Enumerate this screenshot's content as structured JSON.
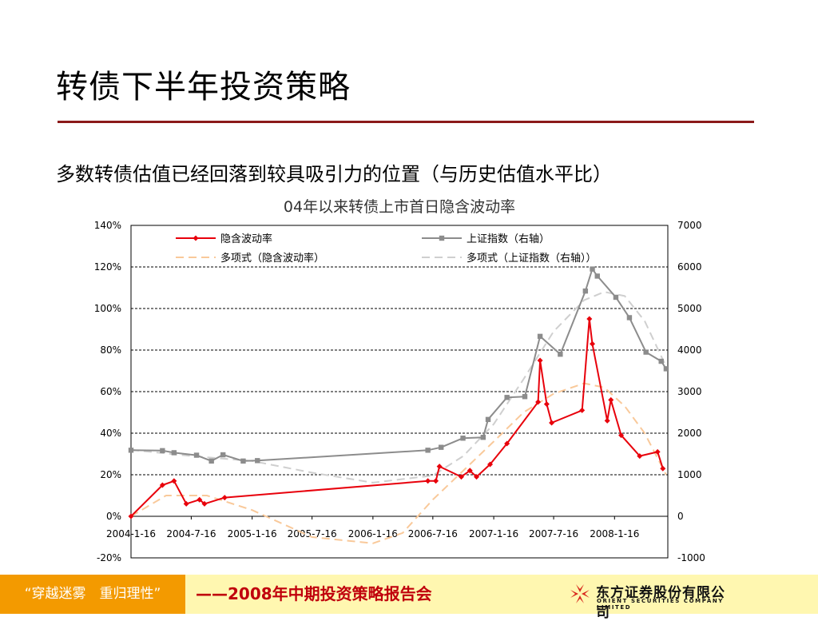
{
  "slide": {
    "title": "转债下半年投资策略",
    "subtitle": "多数转债估值已经回落到较具吸引力的位置（与历史估值水平比）"
  },
  "footer": {
    "left_text": "“穿越迷雾　重归理性”",
    "center_text": "——2008年中期投资策略报告会",
    "logo_cn": "东方证券股份有限公司",
    "logo_en": "ORIENT SECURITIES COMPANY LIMITED",
    "logo_color": "#d8261c"
  },
  "chart_data": {
    "type": "line",
    "title": "04年以来转债上市首日隐含波动率",
    "x_ticks": [
      "2004-1-16",
      "2004-7-16",
      "2005-1-16",
      "2005-7-16",
      "2006-1-16",
      "2006-7-16",
      "2007-1-16",
      "2007-7-16",
      "2008-1-16"
    ],
    "x_range": [
      "2004-01-16",
      "2008-06-25"
    ],
    "y_left": {
      "range": [
        -20,
        140
      ],
      "ticks": [
        "-20%",
        "0%",
        "20%",
        "40%",
        "60%",
        "80%",
        "100%",
        "120%",
        "140%"
      ]
    },
    "y_right": {
      "range": [
        -1000,
        7000
      ],
      "ticks": [
        "-1000",
        "0",
        "1000",
        "2000",
        "3000",
        "4000",
        "5000",
        "6000",
        "7000"
      ]
    },
    "grid": true,
    "legend_position": "top",
    "series": [
      {
        "name": "隐含波动率",
        "axis": "left",
        "color": "#e8000b",
        "style": "solid-marker-diamond",
        "points": [
          [
            "2004-01-16",
            0
          ],
          [
            "2004-04-20",
            15
          ],
          [
            "2004-05-25",
            17
          ],
          [
            "2004-07-01",
            6
          ],
          [
            "2004-08-10",
            8
          ],
          [
            "2004-08-25",
            6
          ],
          [
            "2004-10-25",
            9
          ],
          [
            "2006-07-01",
            17
          ],
          [
            "2006-07-25",
            17
          ],
          [
            "2006-08-05",
            24
          ],
          [
            "2006-10-10",
            19
          ],
          [
            "2006-11-05",
            22
          ],
          [
            "2006-11-25",
            19
          ],
          [
            "2007-01-05",
            25
          ],
          [
            "2007-02-25",
            35
          ],
          [
            "2007-05-30",
            55
          ],
          [
            "2007-06-05",
            75
          ],
          [
            "2007-06-25",
            54
          ],
          [
            "2007-07-10",
            45
          ],
          [
            "2007-10-10",
            51
          ],
          [
            "2007-11-01",
            95
          ],
          [
            "2007-11-10",
            83
          ],
          [
            "2007-12-25",
            46
          ],
          [
            "2008-01-05",
            56
          ],
          [
            "2008-02-05",
            39
          ],
          [
            "2008-04-01",
            29
          ],
          [
            "2008-05-25",
            31
          ],
          [
            "2008-06-10",
            23
          ]
        ]
      },
      {
        "name": "上证指数（右轴）",
        "axis": "right",
        "color": "#8c8c8c",
        "style": "solid-marker-square",
        "points": [
          [
            "2004-01-16",
            1590
          ],
          [
            "2004-04-20",
            1580
          ],
          [
            "2004-05-25",
            1530
          ],
          [
            "2004-08-01",
            1470
          ],
          [
            "2004-09-15",
            1330
          ],
          [
            "2004-10-20",
            1480
          ],
          [
            "2004-12-20",
            1330
          ],
          [
            "2005-02-01",
            1340
          ],
          [
            "2006-07-01",
            1590
          ],
          [
            "2006-08-10",
            1660
          ],
          [
            "2006-10-15",
            1880
          ],
          [
            "2006-12-15",
            1900
          ],
          [
            "2006-12-30",
            2330
          ],
          [
            "2007-02-25",
            2860
          ],
          [
            "2007-04-20",
            2880
          ],
          [
            "2007-06-05",
            4330
          ],
          [
            "2007-08-05",
            3900
          ],
          [
            "2007-10-20",
            5420
          ],
          [
            "2007-11-10",
            5950
          ],
          [
            "2007-11-25",
            5780
          ],
          [
            "2008-01-20",
            5270
          ],
          [
            "2008-03-01",
            4780
          ],
          [
            "2008-04-20",
            3950
          ],
          [
            "2008-06-05",
            3730
          ],
          [
            "2008-06-20",
            3550
          ]
        ]
      },
      {
        "name": "多项式（隐含波动率）",
        "axis": "left",
        "color": "#f9c99a",
        "style": "dashed",
        "points": [
          [
            "2004-01-16",
            0
          ],
          [
            "2004-05-01",
            10
          ],
          [
            "2004-09-01",
            10
          ],
          [
            "2005-01-16",
            3
          ],
          [
            "2005-07-16",
            -10
          ],
          [
            "2006-01-16",
            -13
          ],
          [
            "2006-04-16",
            -8
          ],
          [
            "2006-07-16",
            8
          ],
          [
            "2006-10-16",
            22
          ],
          [
            "2007-01-16",
            36
          ],
          [
            "2007-04-16",
            50
          ],
          [
            "2007-07-16",
            59
          ],
          [
            "2007-10-16",
            64
          ],
          [
            "2007-12-16",
            62
          ],
          [
            "2008-02-16",
            53
          ],
          [
            "2008-04-16",
            40
          ],
          [
            "2008-06-20",
            20
          ]
        ]
      },
      {
        "name": "多项式（上证指数（右轴））",
        "axis": "right",
        "color": "#cfcfcf",
        "style": "dashed",
        "points": [
          [
            "2004-01-16",
            1600
          ],
          [
            "2004-07-16",
            1450
          ],
          [
            "2005-01-16",
            1330
          ],
          [
            "2005-07-16",
            1050
          ],
          [
            "2006-01-16",
            810
          ],
          [
            "2006-07-16",
            980
          ],
          [
            "2006-10-16",
            1450
          ],
          [
            "2007-01-16",
            2220
          ],
          [
            "2007-04-16",
            3300
          ],
          [
            "2007-07-16",
            4450
          ],
          [
            "2007-10-16",
            5200
          ],
          [
            "2007-12-16",
            5400
          ],
          [
            "2008-02-16",
            5300
          ],
          [
            "2008-04-16",
            4700
          ],
          [
            "2008-06-20",
            3600
          ]
        ]
      }
    ]
  }
}
